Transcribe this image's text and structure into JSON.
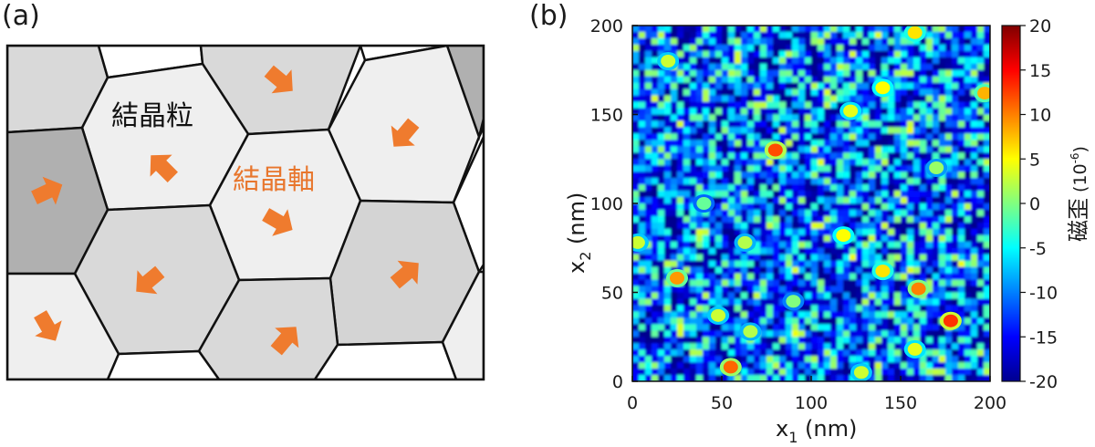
{
  "panel_a": {
    "label": "(a)",
    "grain_label": "結晶粒",
    "axis_label": "結晶軸",
    "colors": {
      "arrow": "#ef7b2e",
      "border": "#111111",
      "light": "#f0f0f0",
      "mid": "#d9d9d9",
      "dark": "#b3b3b3"
    }
  },
  "panel_b": {
    "label": "(b)",
    "chart_data": {
      "type": "heatmap",
      "x_ticks": [
        "0",
        "50",
        "100",
        "150",
        "200"
      ],
      "y_ticks": [
        "0",
        "50",
        "100",
        "150",
        "200"
      ],
      "xlim": [
        0,
        200
      ],
      "ylim": [
        0,
        200
      ],
      "xlabel_main": "x",
      "xlabel_sub": "1",
      "xlabel_unit": " (nm)",
      "ylabel_main": "x",
      "ylabel_sub": "2",
      "ylabel_unit": " (nm)",
      "colorbar": {
        "ticks": [
          "20",
          "15",
          "10",
          "5",
          "0",
          "-5",
          "-10",
          "-15",
          "-20"
        ],
        "range": [
          -20,
          20
        ],
        "label_main": "磁歪",
        "label_unit": "(10",
        "label_exp": "-6",
        "label_close": ")"
      },
      "hotspots": [
        {
          "x": 80,
          "y": 130,
          "v": 12
        },
        {
          "x": 25,
          "y": 58,
          "v": 9
        },
        {
          "x": 160,
          "y": 52,
          "v": 10
        },
        {
          "x": 178,
          "y": 34,
          "v": 13
        },
        {
          "x": 55,
          "y": 8,
          "v": 11
        },
        {
          "x": 118,
          "y": 82,
          "v": 5
        },
        {
          "x": 140,
          "y": 62,
          "v": 6
        },
        {
          "x": 158,
          "y": 18,
          "v": 4
        },
        {
          "x": 128,
          "y": 5,
          "v": 3
        },
        {
          "x": 48,
          "y": 37,
          "v": 3
        },
        {
          "x": 20,
          "y": 180,
          "v": 3
        },
        {
          "x": 158,
          "y": 196,
          "v": 6
        },
        {
          "x": 197,
          "y": 162,
          "v": 8
        },
        {
          "x": 140,
          "y": 165,
          "v": 5
        },
        {
          "x": 122,
          "y": 152,
          "v": 4
        },
        {
          "x": 63,
          "y": 78,
          "v": 2
        },
        {
          "x": 3,
          "y": 78,
          "v": 3
        },
        {
          "x": 66,
          "y": 28,
          "v": 2
        },
        {
          "x": 90,
          "y": 45,
          "v": 0
        },
        {
          "x": 170,
          "y": 120,
          "v": 1
        },
        {
          "x": 40,
          "y": 100,
          "v": -1
        }
      ]
    }
  }
}
